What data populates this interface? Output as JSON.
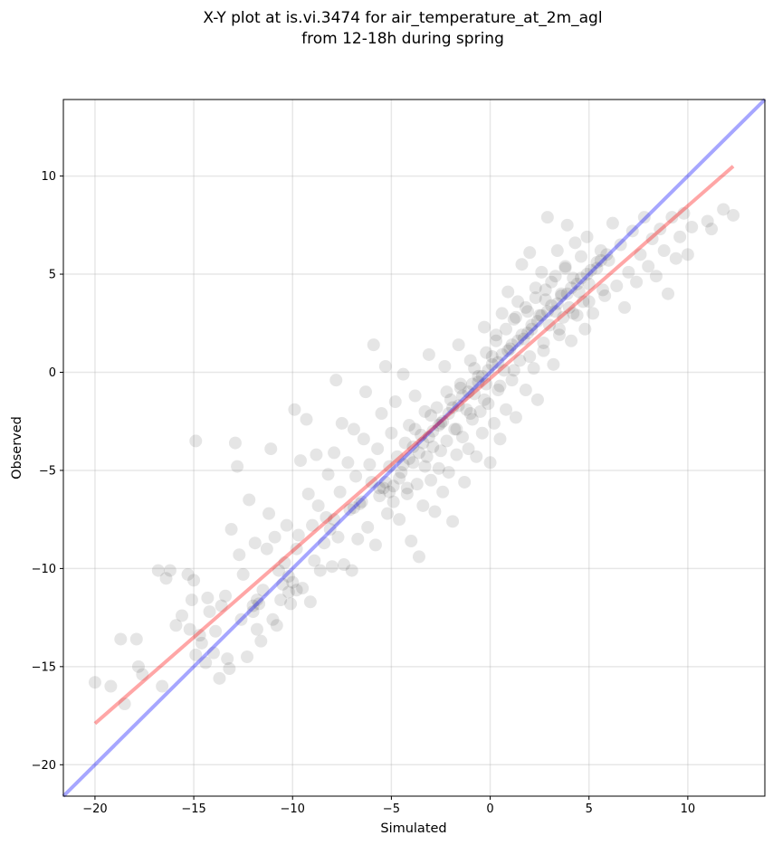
{
  "chart_data": {
    "type": "scatter",
    "title": "X-Y plot at is.vi.3474 for air_temperature_at_2m_agl",
    "subtitle": "from 12-18h during spring",
    "xlabel": "Simulated",
    "ylabel": "Observed",
    "xlim": [
      -21.6,
      13.9
    ],
    "ylim": [
      -21.6,
      13.9
    ],
    "x_ticks": [
      -20,
      -15,
      -10,
      -5,
      0,
      5,
      10
    ],
    "y_ticks": [
      -20,
      -15,
      -10,
      -5,
      0,
      5,
      10
    ],
    "x_tick_labels": [
      "−20",
      "−15",
      "−10",
      "−5",
      "0",
      "5",
      "10"
    ],
    "y_tick_labels": [
      "−20",
      "−15",
      "−10",
      "−5",
      "0",
      "5",
      "10"
    ],
    "grid": true,
    "point_color": "#000000",
    "point_opacity": 0.1,
    "lines": [
      {
        "role": "identity",
        "color": "#0000ff",
        "x": [
          -21.6,
          13.9
        ],
        "y": [
          -21.6,
          13.9
        ]
      },
      {
        "role": "fit",
        "color": "#ff0000",
        "x": [
          -20.0,
          12.3
        ],
        "y": [
          -17.9,
          10.5
        ]
      }
    ],
    "points": [
      [
        -20.0,
        -15.8
      ],
      [
        -19.2,
        -16.0
      ],
      [
        -18.7,
        -13.6
      ],
      [
        -18.5,
        -16.9
      ],
      [
        -17.9,
        -13.6
      ],
      [
        -17.8,
        -15.0
      ],
      [
        -17.6,
        -15.4
      ],
      [
        -16.8,
        -10.1
      ],
      [
        -16.6,
        -16.0
      ],
      [
        -16.4,
        -10.5
      ],
      [
        -16.2,
        -10.1
      ],
      [
        -15.9,
        -12.9
      ],
      [
        -15.6,
        -12.4
      ],
      [
        -15.3,
        -10.3
      ],
      [
        -15.2,
        -13.1
      ],
      [
        -15.1,
        -11.6
      ],
      [
        -15.0,
        -10.6
      ],
      [
        -14.9,
        -14.4
      ],
      [
        -14.9,
        -3.5
      ],
      [
        -14.7,
        -13.4
      ],
      [
        -14.6,
        -13.8
      ],
      [
        -14.4,
        -14.8
      ],
      [
        -14.3,
        -11.5
      ],
      [
        -14.2,
        -12.2
      ],
      [
        -14.0,
        -14.3
      ],
      [
        -13.9,
        -13.2
      ],
      [
        -13.7,
        -15.6
      ],
      [
        -13.6,
        -11.9
      ],
      [
        -13.4,
        -11.4
      ],
      [
        -13.3,
        -14.6
      ],
      [
        -13.2,
        -15.1
      ],
      [
        -13.1,
        -8.0
      ],
      [
        -12.9,
        -3.6
      ],
      [
        -12.8,
        -4.8
      ],
      [
        -12.7,
        -9.3
      ],
      [
        -12.6,
        -12.6
      ],
      [
        -12.5,
        -10.3
      ],
      [
        -12.3,
        -14.5
      ],
      [
        -12.2,
        -6.5
      ],
      [
        -12.0,
        -12.2
      ],
      [
        -11.9,
        -8.7
      ],
      [
        -11.8,
        -13.1
      ],
      [
        -11.7,
        -11.8
      ],
      [
        -11.6,
        -13.7
      ],
      [
        -11.5,
        -11.1
      ],
      [
        -11.3,
        -9.0
      ],
      [
        -11.2,
        -7.2
      ],
      [
        -11.1,
        -3.9
      ],
      [
        -11.0,
        -12.6
      ],
      [
        -10.9,
        -8.4
      ],
      [
        -10.8,
        -12.9
      ],
      [
        -10.7,
        -10.1
      ],
      [
        -10.6,
        -11.6
      ],
      [
        -10.4,
        -9.7
      ],
      [
        -10.3,
        -7.8
      ],
      [
        -10.2,
        -11.2
      ],
      [
        -10.1,
        -11.8
      ],
      [
        -10.0,
        -10.7
      ],
      [
        -9.9,
        -1.9
      ],
      [
        -9.8,
        -9.0
      ],
      [
        -9.7,
        -8.3
      ],
      [
        -9.6,
        -4.5
      ],
      [
        -9.5,
        -11.0
      ],
      [
        -9.3,
        -2.4
      ],
      [
        -9.2,
        -6.2
      ],
      [
        -9.1,
        -11.7
      ],
      [
        -9.0,
        -7.8
      ],
      [
        -8.9,
        -9.6
      ],
      [
        -8.8,
        -4.2
      ],
      [
        -8.7,
        -6.8
      ],
      [
        -8.6,
        -10.1
      ],
      [
        -8.4,
        -8.7
      ],
      [
        -8.3,
        -7.4
      ],
      [
        -8.2,
        -5.2
      ],
      [
        -8.0,
        -9.9
      ],
      [
        -7.9,
        -4.1
      ],
      [
        -7.8,
        -0.4
      ],
      [
        -7.7,
        -8.4
      ],
      [
        -7.6,
        -6.1
      ],
      [
        -7.5,
        -2.6
      ],
      [
        -7.4,
        -9.8
      ],
      [
        -7.2,
        -4.6
      ],
      [
        -7.1,
        -7.0
      ],
      [
        -7.0,
        -10.1
      ],
      [
        -6.9,
        -2.9
      ],
      [
        -6.8,
        -5.3
      ],
      [
        -6.7,
        -8.5
      ],
      [
        -6.5,
        -6.6
      ],
      [
        -6.4,
        -3.4
      ],
      [
        -6.3,
        -1.0
      ],
      [
        -6.2,
        -7.9
      ],
      [
        -6.1,
        -4.7
      ],
      [
        -6.0,
        -5.6
      ],
      [
        -5.9,
        1.4
      ],
      [
        -5.8,
        -8.8
      ],
      [
        -5.7,
        -3.9
      ],
      [
        -5.6,
        -6.3
      ],
      [
        -5.5,
        -2.1
      ],
      [
        -5.4,
        -5.9
      ],
      [
        -5.3,
        0.3
      ],
      [
        -5.2,
        -7.2
      ],
      [
        -5.1,
        -4.8
      ],
      [
        -5.0,
        -3.1
      ],
      [
        -4.9,
        -6.6
      ],
      [
        -4.8,
        -1.5
      ],
      [
        -4.7,
        -4.3
      ],
      [
        -4.6,
        -7.5
      ],
      [
        -4.5,
        -5.1
      ],
      [
        -4.4,
        -0.1
      ],
      [
        -4.3,
        -3.6
      ],
      [
        -4.2,
        -6.2
      ],
      [
        -4.1,
        -2.7
      ],
      [
        -4.0,
        -8.6
      ],
      [
        -3.9,
        -4.6
      ],
      [
        -3.8,
        -1.2
      ],
      [
        -3.7,
        -5.7
      ],
      [
        -3.6,
        -9.4
      ],
      [
        -3.5,
        -3.2
      ],
      [
        -3.4,
        -6.8
      ],
      [
        -3.3,
        -2.0
      ],
      [
        -3.2,
        -4.3
      ],
      [
        -3.1,
        0.9
      ],
      [
        -3.0,
        -5.5
      ],
      [
        -2.9,
        -3.8
      ],
      [
        -2.8,
        -7.1
      ],
      [
        -2.7,
        -1.8
      ],
      [
        -2.6,
        -4.9
      ],
      [
        -2.5,
        -2.6
      ],
      [
        -2.4,
        -6.1
      ],
      [
        -2.3,
        0.3
      ],
      [
        -2.2,
        -3.5
      ],
      [
        -2.1,
        -5.1
      ],
      [
        -2.0,
        -1.4
      ],
      [
        -1.9,
        -7.6
      ],
      [
        -1.8,
        -2.9
      ],
      [
        -1.7,
        -4.2
      ],
      [
        -1.6,
        1.4
      ],
      [
        -1.5,
        -0.8
      ],
      [
        -1.4,
        -3.3
      ],
      [
        -1.3,
        -5.6
      ],
      [
        -1.2,
        -1.9
      ],
      [
        -1.1,
        -3.9
      ],
      [
        -1.0,
        0.6
      ],
      [
        -0.9,
        -2.4
      ],
      [
        -0.8,
        -1.1
      ],
      [
        -0.7,
        -4.3
      ],
      [
        -0.6,
        -0.2
      ],
      [
        -0.5,
        -2.0
      ],
      [
        -0.4,
        -3.1
      ],
      [
        -0.3,
        2.3
      ],
      [
        -0.2,
        -0.6
      ],
      [
        -0.1,
        -1.6
      ],
      [
        0.0,
        -4.6
      ],
      [
        0.1,
        0.8
      ],
      [
        0.2,
        -2.6
      ],
      [
        0.3,
        1.9
      ],
      [
        0.4,
        -0.9
      ],
      [
        0.5,
        -3.4
      ],
      [
        0.6,
        3.0
      ],
      [
        0.7,
        0.1
      ],
      [
        0.8,
        -1.9
      ],
      [
        0.9,
        4.1
      ],
      [
        1.0,
        1.2
      ],
      [
        1.1,
        -0.4
      ],
      [
        1.2,
        2.7
      ],
      [
        1.3,
        -2.3
      ],
      [
        1.4,
        3.6
      ],
      [
        1.5,
        0.6
      ],
      [
        1.6,
        5.5
      ],
      [
        1.7,
        1.7
      ],
      [
        1.8,
        -0.9
      ],
      [
        1.9,
        3.1
      ],
      [
        2.0,
        6.1
      ],
      [
        2.1,
        2.2
      ],
      [
        2.2,
        0.2
      ],
      [
        2.3,
        4.3
      ],
      [
        2.4,
        -1.4
      ],
      [
        2.5,
        2.9
      ],
      [
        2.6,
        5.1
      ],
      [
        2.7,
        1.1
      ],
      [
        2.8,
        3.7
      ],
      [
        2.9,
        7.9
      ],
      [
        3.0,
        2.4
      ],
      [
        3.1,
        4.6
      ],
      [
        3.2,
        0.4
      ],
      [
        3.3,
        3.1
      ],
      [
        3.4,
        6.2
      ],
      [
        3.5,
        1.9
      ],
      [
        3.6,
        4.0
      ],
      [
        3.7,
        2.8
      ],
      [
        3.8,
        5.4
      ],
      [
        3.9,
        7.5
      ],
      [
        4.0,
        3.3
      ],
      [
        4.1,
        1.6
      ],
      [
        4.2,
        4.8
      ],
      [
        4.3,
        6.6
      ],
      [
        4.4,
        2.9
      ],
      [
        4.5,
        4.1
      ],
      [
        4.6,
        5.9
      ],
      [
        4.7,
        3.6
      ],
      [
        4.8,
        2.2
      ],
      [
        4.9,
        6.9
      ],
      [
        5.0,
        4.5
      ],
      [
        5.2,
        3.0
      ],
      [
        5.4,
        5.3
      ],
      [
        5.6,
        6.2
      ],
      [
        5.8,
        3.9
      ],
      [
        6.0,
        5.7
      ],
      [
        6.2,
        7.6
      ],
      [
        6.4,
        4.4
      ],
      [
        6.6,
        6.5
      ],
      [
        6.8,
        3.3
      ],
      [
        7.0,
        5.1
      ],
      [
        7.2,
        7.2
      ],
      [
        7.4,
        4.6
      ],
      [
        7.6,
        6.0
      ],
      [
        7.8,
        7.9
      ],
      [
        8.0,
        5.4
      ],
      [
        8.2,
        6.8
      ],
      [
        8.4,
        4.9
      ],
      [
        8.6,
        7.3
      ],
      [
        8.8,
        6.2
      ],
      [
        9.0,
        4.0
      ],
      [
        9.2,
        7.9
      ],
      [
        9.4,
        5.8
      ],
      [
        9.6,
        6.9
      ],
      [
        9.8,
        8.1
      ],
      [
        10.0,
        6.0
      ],
      [
        10.2,
        7.4
      ],
      [
        11.0,
        7.7
      ],
      [
        11.2,
        7.3
      ],
      [
        11.8,
        8.3
      ],
      [
        12.3,
        8.0
      ],
      [
        -12.0,
        -11.9
      ],
      [
        -11.8,
        -11.6
      ],
      [
        -10.5,
        -10.8
      ],
      [
        -10.2,
        -10.4
      ],
      [
        -9.8,
        -11.1
      ],
      [
        -8.1,
        -8.0
      ],
      [
        -7.9,
        -7.5
      ],
      [
        -6.9,
        -6.9
      ],
      [
        -6.6,
        -6.7
      ],
      [
        -5.6,
        -5.9
      ],
      [
        -5.3,
        -5.6
      ],
      [
        -5.1,
        -6.1
      ],
      [
        -4.9,
        -5.8
      ],
      [
        -4.6,
        -5.4
      ],
      [
        -4.4,
        -4.7
      ],
      [
        -4.1,
        -4.4
      ],
      [
        -3.9,
        -3.8
      ],
      [
        -3.6,
        -4.1
      ],
      [
        -3.4,
        -3.6
      ],
      [
        -3.1,
        -3.3
      ],
      [
        -2.9,
        -3.0
      ],
      [
        -2.6,
        -2.7
      ],
      [
        -2.4,
        -2.5
      ],
      [
        -2.1,
        -2.1
      ],
      [
        -1.9,
        -1.8
      ],
      [
        -1.6,
        -1.7
      ],
      [
        -1.4,
        -1.2
      ],
      [
        -1.1,
        -1.0
      ],
      [
        -0.9,
        -0.6
      ],
      [
        -0.6,
        -0.5
      ],
      [
        -0.4,
        -0.2
      ],
      [
        -0.1,
        0.1
      ],
      [
        0.1,
        0.4
      ],
      [
        0.4,
        0.5
      ],
      [
        0.6,
        0.9
      ],
      [
        0.9,
        1.1
      ],
      [
        1.1,
        1.4
      ],
      [
        1.4,
        1.6
      ],
      [
        1.6,
        1.9
      ],
      [
        1.9,
        2.0
      ],
      [
        2.1,
        2.4
      ],
      [
        2.4,
        2.6
      ],
      [
        2.6,
        2.9
      ],
      [
        2.9,
        3.1
      ],
      [
        3.1,
        3.4
      ],
      [
        3.4,
        3.5
      ],
      [
        3.6,
        3.9
      ],
      [
        3.9,
        4.0
      ],
      [
        4.1,
        4.3
      ],
      [
        4.4,
        4.5
      ],
      [
        4.6,
        4.8
      ],
      [
        4.9,
        5.0
      ],
      [
        5.1,
        5.2
      ],
      [
        5.4,
        5.6
      ],
      [
        5.6,
        5.7
      ],
      [
        5.9,
        6.0
      ],
      [
        -3.8,
        -2.9
      ],
      [
        -3.0,
        -2.2
      ],
      [
        -2.2,
        -1.0
      ],
      [
        -1.5,
        -0.6
      ],
      [
        -0.8,
        0.2
      ],
      [
        -0.2,
        1.0
      ],
      [
        0.3,
        1.6
      ],
      [
        0.8,
        2.2
      ],
      [
        1.3,
        2.8
      ],
      [
        1.8,
        3.3
      ],
      [
        2.3,
        3.8
      ],
      [
        2.8,
        4.2
      ],
      [
        3.3,
        4.9
      ],
      [
        3.8,
        5.3
      ],
      [
        -4.2,
        -5.9
      ],
      [
        -3.3,
        -4.8
      ],
      [
        -2.5,
        -4.0
      ],
      [
        -1.7,
        -2.9
      ],
      [
        -1.0,
        -2.1
      ],
      [
        -0.3,
        -1.4
      ],
      [
        0.5,
        -0.7
      ],
      [
        1.2,
        0.1
      ],
      [
        2.0,
        0.8
      ],
      [
        2.7,
        1.5
      ],
      [
        3.5,
        2.2
      ],
      [
        4.2,
        3.0
      ],
      [
        5.0,
        3.6
      ],
      [
        5.7,
        4.2
      ]
    ]
  }
}
